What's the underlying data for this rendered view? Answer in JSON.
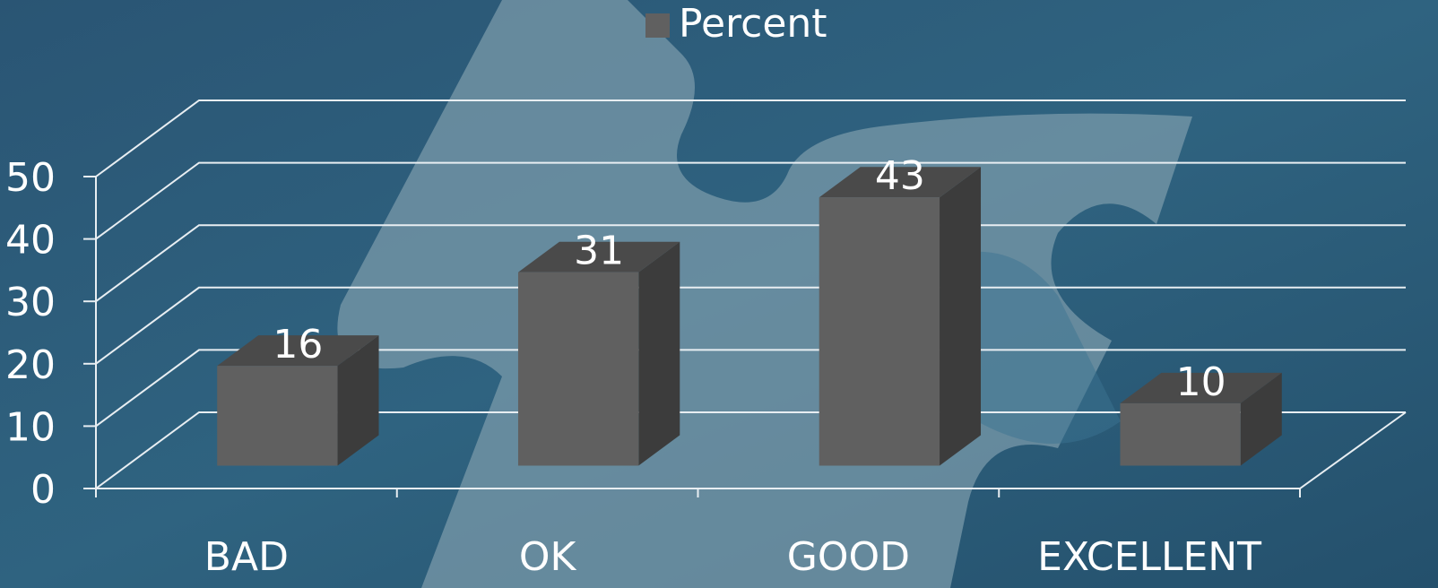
{
  "chart_data": {
    "type": "bar3d",
    "categories": [
      "BAD",
      "OK",
      "GOOD",
      "EXCELLENT"
    ],
    "series": [
      {
        "name": "Percent",
        "color": "#606060",
        "values": [
          16,
          31,
          43,
          10
        ]
      }
    ],
    "ylim": [
      0,
      50
    ],
    "yticks": [
      0,
      10,
      20,
      30,
      40,
      50
    ],
    "grid": true,
    "legend": "top"
  }
}
